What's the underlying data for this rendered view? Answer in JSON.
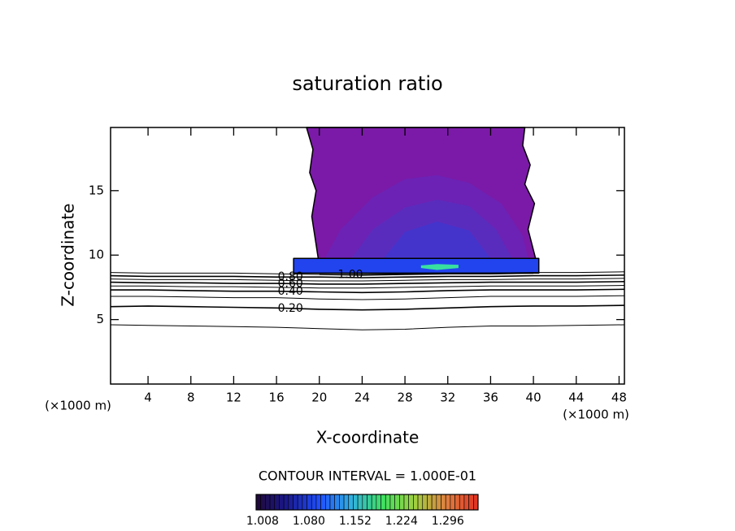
{
  "chart_data": {
    "type": "contour",
    "title": "saturation ratio",
    "x_label": "X-coordinate",
    "y_label": "Z-coordinate",
    "x_unit": "(×1000 m)",
    "y_unit": "(×1000 m)",
    "annotation": "CONTOUR INTERVAL = 1.000E-01",
    "xlim": [
      0.5,
      48.5
    ],
    "ylim": [
      0,
      19.9
    ],
    "xticks": [
      4,
      8,
      12,
      16,
      20,
      24,
      28,
      32,
      36,
      40,
      44,
      48
    ],
    "yticks": [
      5,
      10,
      15
    ],
    "regions": [
      {
        "color": "#7b1aa8",
        "edge": "#000000",
        "x": [
          18.8,
          19.4,
          19.1,
          19.7,
          19.3,
          19.9,
          40.2,
          39.5,
          40.1,
          39.2,
          39.7,
          39.0,
          39.2
        ],
        "y": [
          19.9,
          18.2,
          16.4,
          15.0,
          13.0,
          9.75,
          9.75,
          12.0,
          14.0,
          15.5,
          17.0,
          18.5,
          19.9
        ]
      },
      {
        "color": "#6c22b4",
        "x": [
          20.5,
          22,
          25,
          28,
          31,
          34,
          37,
          39,
          39.5
        ],
        "y": [
          9.75,
          12,
          14.5,
          15.9,
          16.2,
          15.6,
          14,
          11.5,
          9.75
        ]
      },
      {
        "color": "#5a2cbe",
        "x": [
          23,
          25,
          28,
          31,
          34,
          36.5,
          38
        ],
        "y": [
          9.75,
          12,
          13.7,
          14.3,
          13.8,
          12,
          9.75
        ]
      },
      {
        "color": "#4434cc",
        "x": [
          26,
          28,
          31,
          34,
          36
        ],
        "y": [
          9.75,
          11.8,
          12.6,
          11.9,
          9.75
        ]
      },
      {
        "color": "#2244ee",
        "edge": "#000000",
        "x": [
          17.6,
          40.5,
          40.5,
          17.6
        ],
        "y": [
          8.6,
          8.6,
          9.75,
          9.75
        ]
      },
      {
        "color": "#38e0a0",
        "x": [
          29.5,
          31,
          33,
          33,
          31,
          29.5
        ],
        "y": [
          9.0,
          8.85,
          9.0,
          9.25,
          9.3,
          9.2
        ]
      }
    ],
    "x": [
      0.5,
      4,
      8,
      12,
      16,
      20,
      24,
      28,
      32,
      36,
      40,
      44,
      48.5
    ],
    "contours": [
      {
        "values": [
          4.6,
          4.55,
          4.5,
          4.45,
          4.4,
          4.3,
          4.2,
          4.25,
          4.4,
          4.5,
          4.5,
          4.55,
          4.6
        ]
      },
      {
        "label": {
          "value": 0.2,
          "label": "0.20"
        },
        "values": [
          6.0,
          6.05,
          6.0,
          5.95,
          5.9,
          5.8,
          5.75,
          5.8,
          5.9,
          6.0,
          6.05,
          6.05,
          6.1
        ]
      },
      {
        "values": [
          6.8,
          6.8,
          6.75,
          6.7,
          6.7,
          6.6,
          6.55,
          6.6,
          6.7,
          6.8,
          6.8,
          6.8,
          6.85
        ]
      },
      {
        "label": {
          "value": 0.4,
          "label": "0.40"
        },
        "values": [
          7.3,
          7.3,
          7.25,
          7.2,
          7.2,
          7.15,
          7.1,
          7.15,
          7.25,
          7.3,
          7.3,
          7.3,
          7.35
        ]
      },
      {
        "values": [
          7.6,
          7.6,
          7.55,
          7.55,
          7.5,
          7.45,
          7.45,
          7.5,
          7.55,
          7.6,
          7.6,
          7.6,
          7.65
        ]
      },
      {
        "label": {
          "value": 0.6,
          "label": "0.60"
        },
        "values": [
          7.9,
          7.85,
          7.85,
          7.8,
          7.8,
          7.75,
          7.75,
          7.8,
          7.85,
          7.9,
          7.9,
          7.9,
          7.95
        ]
      },
      {
        "values": [
          8.15,
          8.1,
          8.1,
          8.1,
          8.05,
          8.0,
          8.0,
          8.05,
          8.1,
          8.1,
          8.15,
          8.15,
          8.2
        ]
      },
      {
        "label": {
          "value": 0.8,
          "label": "0.80"
        },
        "values": [
          8.4,
          8.35,
          8.35,
          8.35,
          8.3,
          8.3,
          8.25,
          8.3,
          8.35,
          8.35,
          8.4,
          8.4,
          8.45
        ]
      },
      {
        "values": [
          8.65,
          8.6,
          8.6,
          8.6,
          8.55,
          8.5,
          8.5,
          8.55,
          8.6,
          8.6,
          8.65,
          8.65,
          8.7
        ]
      },
      {
        "label": {
          "value": 1,
          "label": "1.00"
        },
        "values": [
          null,
          null,
          null,
          null,
          null,
          8.5,
          8.45,
          8.5,
          8.55,
          8.55,
          8.6,
          null,
          null
        ]
      }
    ],
    "colorbar": {
      "lim": [
        0.998,
        1.343
      ],
      "ticks": [
        1.008,
        {
          "value": 1.08,
          "label": "1.080"
        },
        1.152,
        1.224,
        1.296
      ],
      "colors": [
        "#200838",
        "#1a1a90",
        "#2050ff",
        "#30b0e0",
        "#40e060",
        "#a0d040",
        "#e08040",
        "#e03020"
      ]
    }
  }
}
